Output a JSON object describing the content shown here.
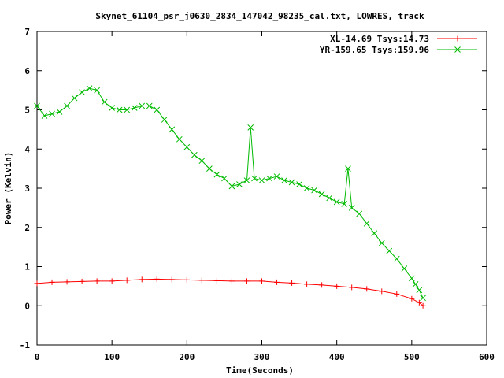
{
  "chart_data": {
    "type": "scatter",
    "title": "Skynet_61104_psr_j0630_2834_147042_98235_cal.txt, LOWRES, track",
    "xlabel": "Time(Seconds)",
    "ylabel": "Power (Kelvin)",
    "xlim": [
      0,
      600
    ],
    "ylim": [
      -1,
      7
    ],
    "xticks": [
      0,
      100,
      200,
      300,
      400,
      500,
      600
    ],
    "yticks": [
      -1,
      0,
      1,
      2,
      3,
      4,
      5,
      6,
      7
    ],
    "grid": false,
    "legend_position": "top-right",
    "series": [
      {
        "name": "XL-14.69 Tsys:14.73",
        "color": "#ff0000",
        "marker": "plus",
        "x": [
          0,
          20,
          40,
          60,
          80,
          100,
          120,
          140,
          160,
          180,
          200,
          220,
          240,
          260,
          280,
          300,
          320,
          340,
          360,
          380,
          400,
          420,
          440,
          460,
          480,
          500,
          510,
          515
        ],
        "y": [
          0.57,
          0.6,
          0.61,
          0.62,
          0.63,
          0.63,
          0.65,
          0.67,
          0.68,
          0.67,
          0.66,
          0.65,
          0.64,
          0.63,
          0.63,
          0.63,
          0.6,
          0.58,
          0.55,
          0.53,
          0.5,
          0.47,
          0.43,
          0.37,
          0.3,
          0.18,
          0.08,
          0.0
        ]
      },
      {
        "name": "YR-159.65 Tsys:159.96",
        "color": "#00bb00",
        "marker": "x",
        "x": [
          0,
          10,
          20,
          30,
          40,
          50,
          60,
          70,
          80,
          90,
          100,
          110,
          120,
          130,
          140,
          150,
          160,
          170,
          180,
          190,
          200,
          210,
          220,
          230,
          240,
          250,
          260,
          270,
          280,
          285,
          290,
          300,
          310,
          320,
          330,
          340,
          350,
          360,
          370,
          380,
          390,
          400,
          410,
          415,
          420,
          430,
          440,
          450,
          460,
          470,
          480,
          490,
          500,
          505,
          510,
          515
        ],
        "y": [
          5.1,
          4.85,
          4.9,
          4.95,
          5.1,
          5.3,
          5.45,
          5.55,
          5.5,
          5.2,
          5.05,
          5.0,
          5.0,
          5.05,
          5.1,
          5.1,
          5.0,
          4.75,
          4.5,
          4.25,
          4.05,
          3.85,
          3.7,
          3.5,
          3.35,
          3.25,
          3.05,
          3.1,
          3.2,
          4.55,
          3.25,
          3.2,
          3.25,
          3.3,
          3.2,
          3.15,
          3.1,
          3.0,
          2.95,
          2.85,
          2.75,
          2.65,
          2.6,
          3.5,
          2.5,
          2.35,
          2.1,
          1.85,
          1.6,
          1.4,
          1.2,
          0.95,
          0.7,
          0.55,
          0.4,
          0.2
        ]
      }
    ]
  }
}
